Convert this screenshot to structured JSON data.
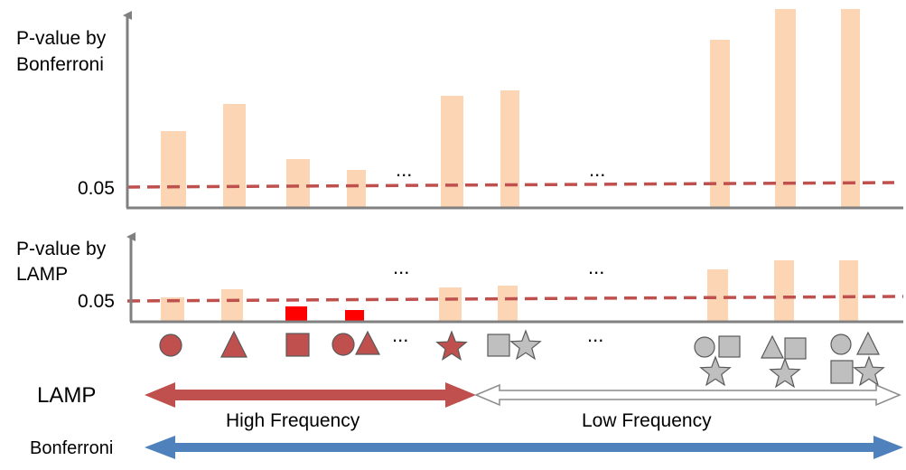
{
  "top_panel": {
    "ylabel_line1": "P-value by",
    "ylabel_line2": "Bonferroni",
    "threshold_label": "0.05",
    "ellipses": [
      "...",
      "..."
    ]
  },
  "bottom_panel": {
    "ylabel_line1": "P-value by",
    "ylabel_line2": "LAMP",
    "threshold_label": "0.05",
    "ellipses": [
      "...",
      "..."
    ]
  },
  "symbol_row": {
    "ellipsis": "...",
    "groups": [
      {
        "shapes": [
          "circle"
        ],
        "color": "red"
      },
      {
        "shapes": [
          "triangle"
        ],
        "color": "red"
      },
      {
        "shapes": [
          "square"
        ],
        "color": "red"
      },
      {
        "shapes": [
          "circle",
          "triangle"
        ],
        "color": "red"
      },
      {
        "shapes": [
          "star"
        ],
        "color": "red"
      },
      {
        "shapes": [
          "square",
          "star"
        ],
        "color": "gray"
      },
      {
        "shapes": [
          "circle",
          "square",
          "star"
        ],
        "color": "gray"
      },
      {
        "shapes": [
          "triangle",
          "square",
          "star"
        ],
        "color": "gray"
      },
      {
        "shapes": [
          "circle",
          "triangle",
          "square",
          "star"
        ],
        "color": "gray"
      }
    ]
  },
  "arrows": {
    "lamp_label": "LAMP",
    "high_frequency_label": "High Frequency",
    "low_frequency_label": "Low Frequency",
    "bonferroni_label": "Bonferroni"
  },
  "colors": {
    "bar": "#fcd5b5",
    "significant_bar": "#ff0000",
    "threshold_line": "#c0504d",
    "axis": "#808080",
    "red_symbol": "#c0504d",
    "gray_symbol": "#bfbfbf",
    "lamp_arrow": "#c0504d",
    "bonferroni_arrow": "#4f81bd"
  }
}
